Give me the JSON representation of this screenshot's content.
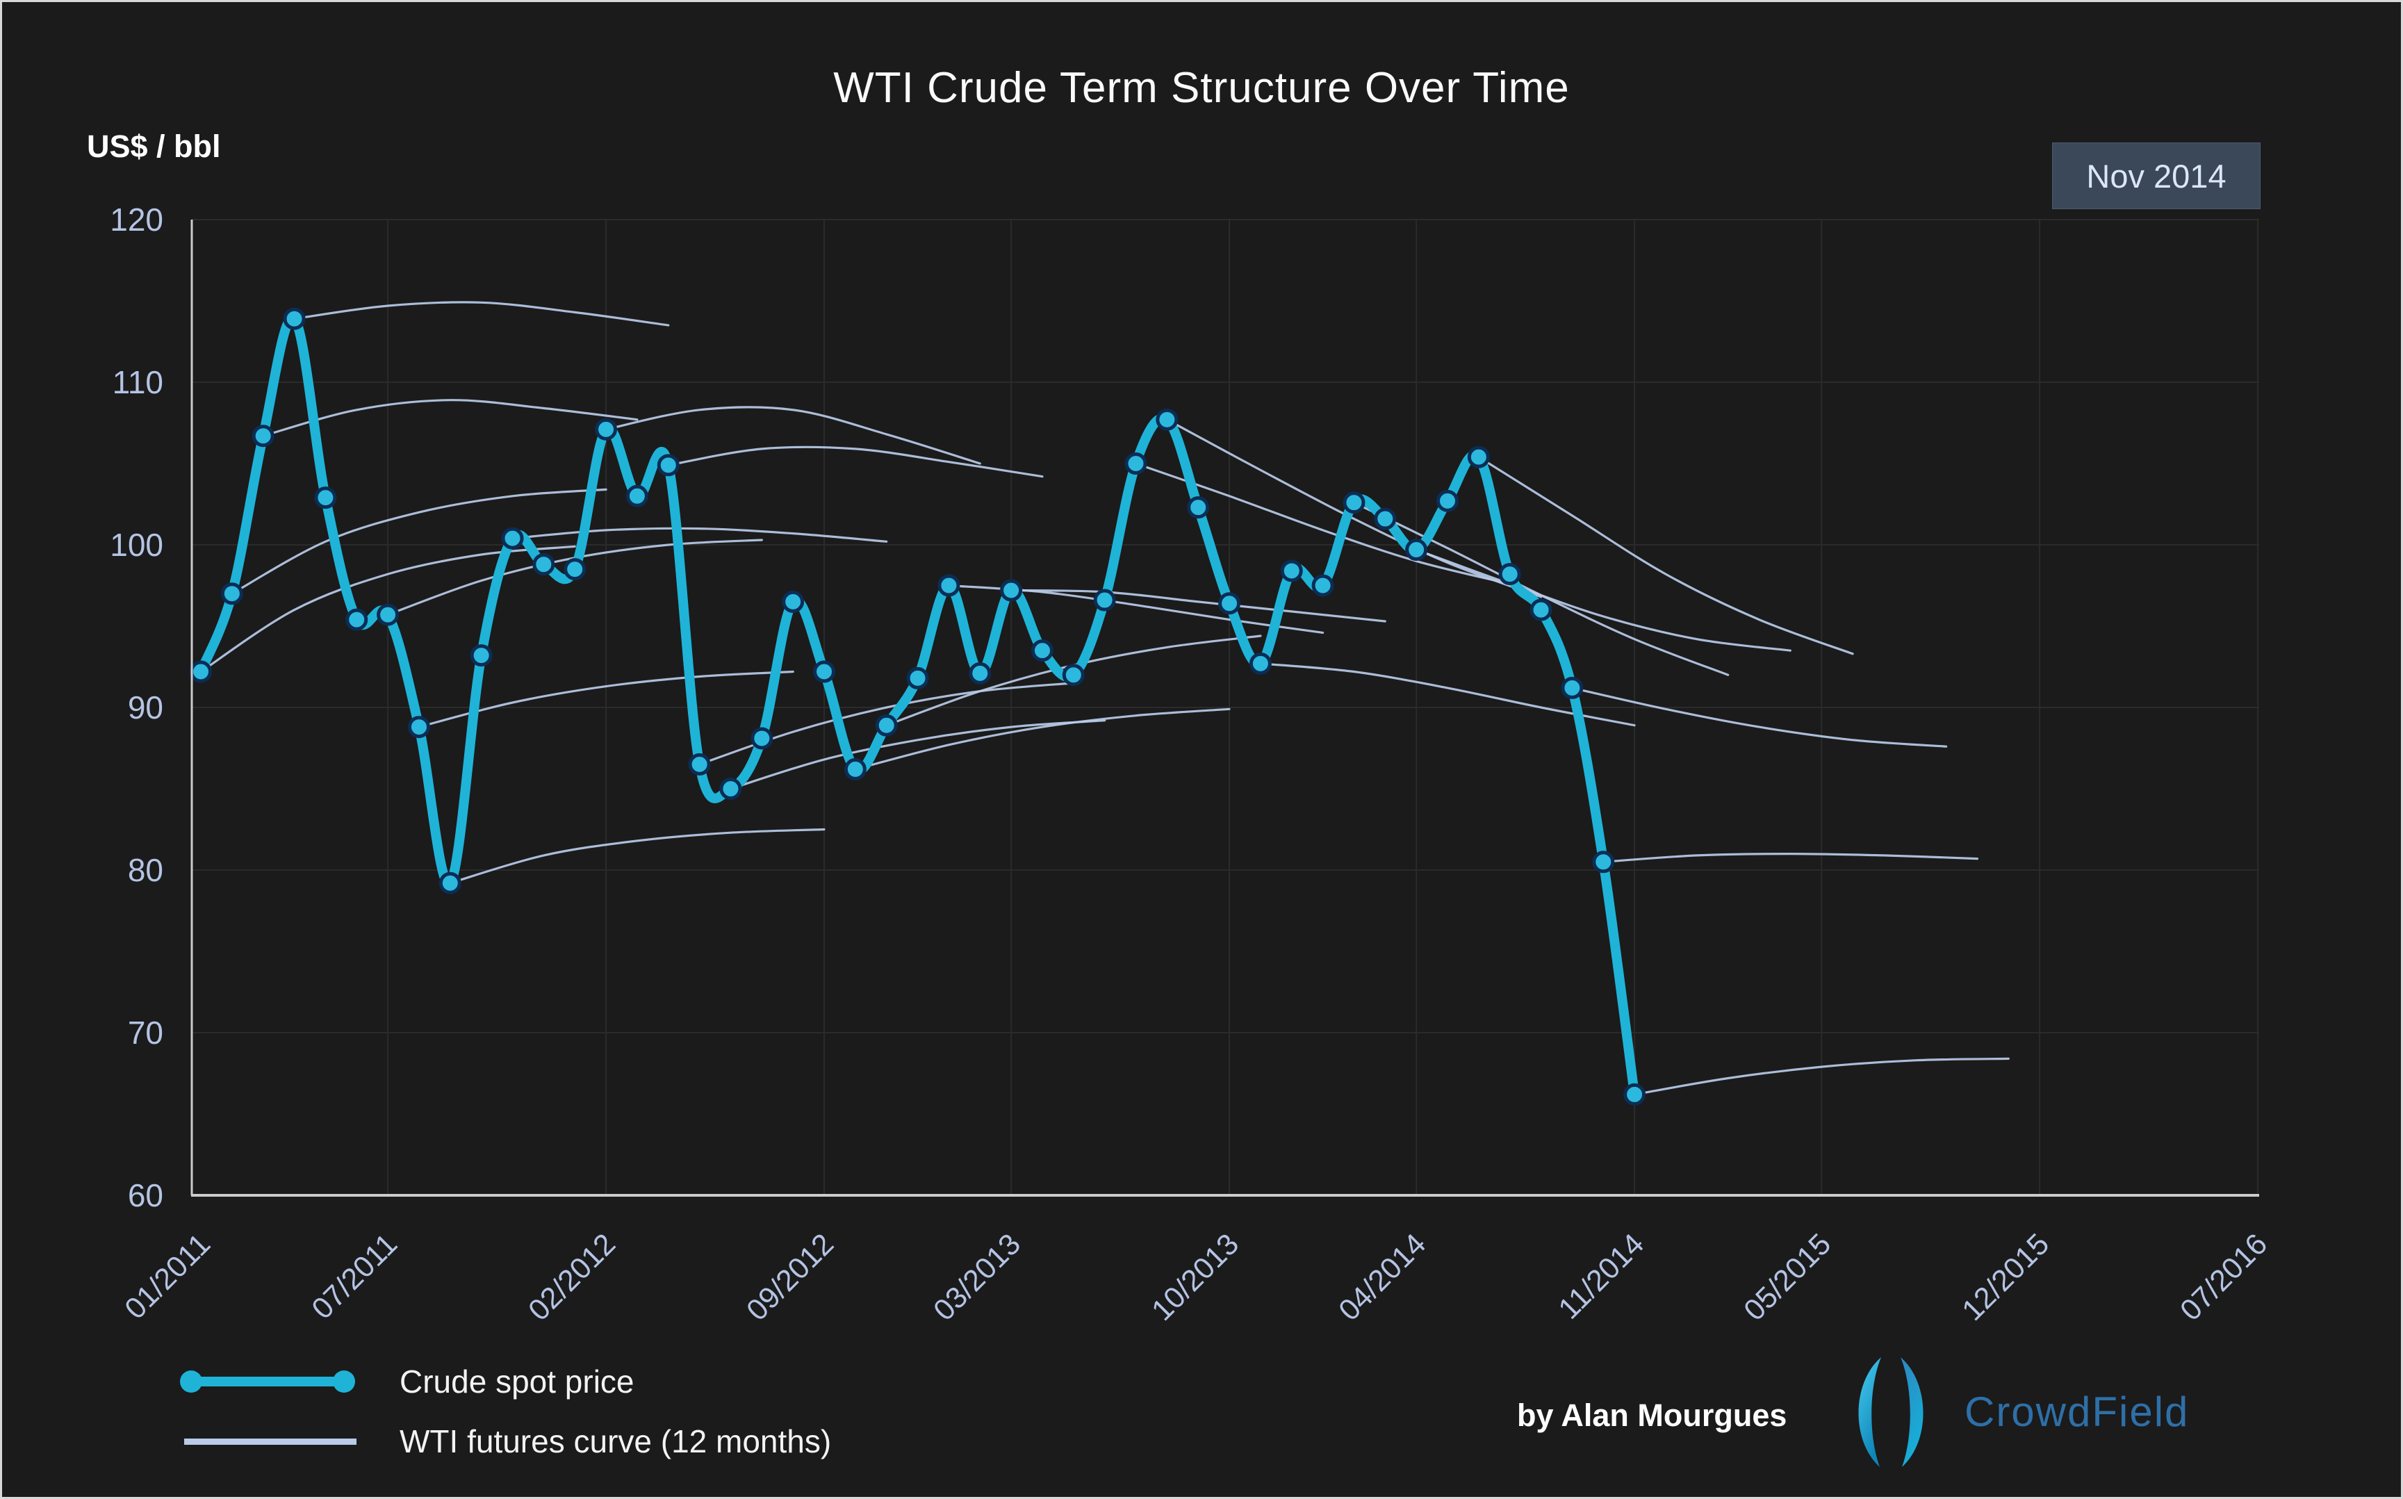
{
  "header": {
    "title": "WTI Crude Term Structure Over Time",
    "y_axis_title": "US$ / bbl",
    "badge": "Nov 2014"
  },
  "legend": {
    "items": [
      {
        "label": "Crude spot price",
        "swatch": "spot"
      },
      {
        "label": "WTI futures curve (12 months)",
        "swatch": "futures"
      }
    ]
  },
  "footer": {
    "credit": "by Alan Mourgues",
    "brand": "CrowdField"
  },
  "colors": {
    "background": "#1b1b1b",
    "spot_line": "#1fb3d8",
    "marker_fill": "#2cb9dd",
    "marker_stroke": "#0b2d55",
    "futures_line": "#b9cbe9",
    "gridline": "#2b2b2b",
    "axis_line": "#cccccc",
    "tick_text": "#b5c4e4",
    "badge_bg": "#3a4859",
    "badge_text": "#dce7f6",
    "brand_blue": "#2e6fa8",
    "logo_cyan": "#2fc0e8",
    "logo_blue": "#1a6aa8"
  },
  "chart_data": {
    "type": "line",
    "title": "WTI Crude Term Structure Over Time",
    "ylabel": "US$ / bbl",
    "ylim": [
      60,
      120
    ],
    "yticks": [
      60,
      70,
      80,
      90,
      100,
      110,
      120
    ],
    "grid": true,
    "x_axis_note": "monthly index, 0 = Jan 2011, 66 = Jul 2016",
    "x_total_months": 66,
    "x_tick_labels": [
      "01/2011",
      "07/2011",
      "02/2012",
      "09/2012",
      "03/2013",
      "10/2013",
      "04/2014",
      "11/2014",
      "05/2015",
      "12/2015",
      "07/2016"
    ],
    "x_tick_month_index": [
      0,
      6,
      13,
      20,
      26,
      33,
      39,
      46,
      52,
      59,
      66
    ],
    "annotation_current_month": "Nov 2014",
    "series": [
      {
        "name": "Crude spot price",
        "start_month": 0,
        "values": [
          92.2,
          97.0,
          106.7,
          113.9,
          102.9,
          95.4,
          95.7,
          88.8,
          79.2,
          93.2,
          100.4,
          98.8,
          98.5,
          107.1,
          103.0,
          104.9,
          86.5,
          85.0,
          88.1,
          96.5,
          92.2,
          86.2,
          88.9,
          91.8,
          97.5,
          92.1,
          97.2,
          93.5,
          92.0,
          96.6,
          105.0,
          107.7,
          102.3,
          96.4,
          92.7,
          98.4,
          97.5,
          102.6,
          101.6,
          99.7,
          102.7,
          105.4,
          98.2,
          96.0,
          91.2,
          80.5,
          66.2
        ]
      }
    ],
    "futures_curves": {
      "name": "WTI futures curve (12 months)",
      "month_step": 3,
      "curves": [
        {
          "start_month": 0,
          "values": [
            92.2,
            96.0,
            98.2,
            99.4,
            99.9
          ]
        },
        {
          "start_month": 1,
          "values": [
            97.0,
            100.2,
            102.0,
            103.0,
            103.4
          ]
        },
        {
          "start_month": 2,
          "values": [
            106.7,
            108.3,
            108.9,
            108.4,
            107.7
          ]
        },
        {
          "start_month": 3,
          "values": [
            113.9,
            114.7,
            114.9,
            114.3,
            113.5
          ]
        },
        {
          "start_month": 6,
          "values": [
            95.7,
            97.8,
            99.2,
            100.0,
            100.3
          ]
        },
        {
          "start_month": 7,
          "values": [
            88.8,
            90.3,
            91.3,
            91.9,
            92.2
          ]
        },
        {
          "start_month": 8,
          "values": [
            79.2,
            80.9,
            81.8,
            82.3,
            82.5
          ]
        },
        {
          "start_month": 10,
          "values": [
            100.4,
            100.9,
            101.0,
            100.7,
            100.2
          ]
        },
        {
          "start_month": 13,
          "values": [
            107.1,
            108.3,
            108.3,
            106.8,
            105.0
          ]
        },
        {
          "start_month": 15,
          "values": [
            104.9,
            105.9,
            105.9,
            105.1,
            104.2
          ]
        },
        {
          "start_month": 16,
          "values": [
            86.5,
            88.5,
            90.0,
            91.0,
            91.5
          ]
        },
        {
          "start_month": 17,
          "values": [
            85.0,
            86.8,
            88.0,
            88.8,
            89.2
          ]
        },
        {
          "start_month": 21,
          "values": [
            86.2,
            87.7,
            88.8,
            89.5,
            89.9
          ]
        },
        {
          "start_month": 22,
          "values": [
            88.9,
            91.0,
            92.6,
            93.7,
            94.4
          ]
        },
        {
          "start_month": 24,
          "values": [
            97.5,
            97.1,
            96.3,
            95.4,
            94.6
          ]
        },
        {
          "start_month": 26,
          "values": [
            97.2,
            97.1,
            96.5,
            95.9,
            95.3
          ]
        },
        {
          "start_month": 30,
          "values": [
            105.0,
            103.0,
            100.9,
            99.0,
            97.6
          ]
        },
        {
          "start_month": 31,
          "values": [
            107.7,
            104.6,
            101.6,
            98.9,
            96.8
          ]
        },
        {
          "start_month": 34,
          "values": [
            92.7,
            92.2,
            91.2,
            90.0,
            88.9
          ]
        },
        {
          "start_month": 37,
          "values": [
            102.6,
            99.8,
            96.9,
            94.2,
            92.0
          ]
        },
        {
          "start_month": 39,
          "values": [
            99.7,
            97.6,
            95.6,
            94.2,
            93.5
          ]
        },
        {
          "start_month": 41,
          "values": [
            105.4,
            101.8,
            98.2,
            95.4,
            93.3
          ]
        },
        {
          "start_month": 44,
          "values": [
            91.2,
            89.9,
            88.8,
            88.0,
            87.6
          ]
        },
        {
          "start_month": 45,
          "values": [
            80.5,
            80.9,
            81.0,
            80.9,
            80.7
          ]
        },
        {
          "start_month": 46,
          "values": [
            66.2,
            67.2,
            67.9,
            68.3,
            68.4
          ]
        }
      ]
    },
    "legend_position": "bottom-left"
  }
}
